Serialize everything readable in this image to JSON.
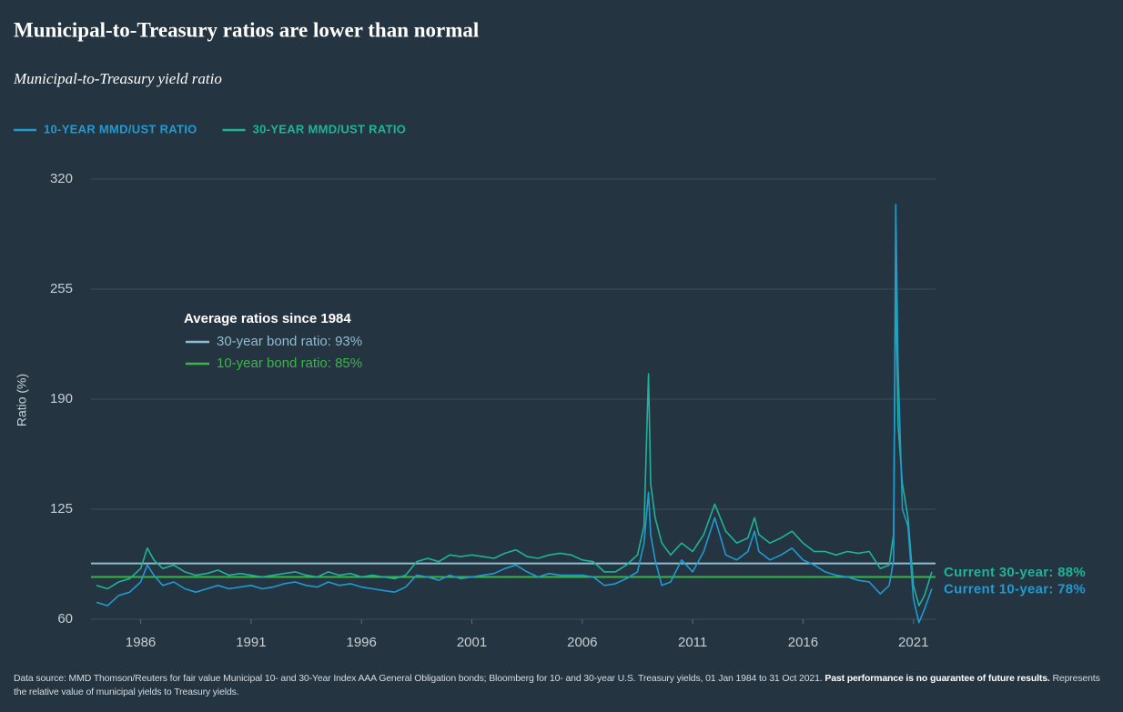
{
  "chart_data": {
    "type": "line",
    "title": "Municipal-to-Treasury ratios are lower than normal",
    "subtitle": "Municipal-to-Treasury yield ratio",
    "y_label": "Ratio (%)",
    "xlim": [
      1983.75,
      2022
    ],
    "xticks": [
      1986,
      1991,
      1996,
      2001,
      2006,
      2011,
      2016,
      2021
    ],
    "ylim": [
      60,
      320
    ],
    "yticks": [
      60,
      125,
      190,
      255,
      320
    ],
    "grid": true,
    "x": [
      1984,
      1984.5,
      1985,
      1985.5,
      1986,
      1986.3,
      1986.6,
      1987,
      1987.5,
      1988,
      1988.5,
      1989,
      1989.5,
      1990,
      1990.5,
      1991,
      1991.5,
      1992,
      1992.5,
      1993,
      1993.5,
      1994,
      1994.5,
      1995,
      1995.5,
      1996,
      1996.5,
      1997,
      1997.5,
      1998,
      1998.5,
      1999,
      1999.5,
      2000,
      2000.5,
      2001,
      2001.5,
      2002,
      2002.5,
      2003,
      2003.5,
      2004,
      2004.5,
      2005,
      2005.5,
      2006,
      2006.5,
      2007,
      2007.5,
      2008,
      2008.5,
      2008.8,
      2009,
      2009.1,
      2009.3,
      2009.6,
      2010,
      2010.5,
      2011,
      2011.5,
      2012,
      2012.5,
      2013,
      2013.5,
      2013.8,
      2014,
      2014.5,
      2015,
      2015.5,
      2016,
      2016.5,
      2017,
      2017.5,
      2018,
      2018.5,
      2019,
      2019.5,
      2019.9,
      2020.1,
      2020.2,
      2020.3,
      2020.5,
      2020.75,
      2021,
      2021.25,
      2021.5,
      2021.83
    ],
    "series": [
      {
        "name": "10-YEAR MMD/UST RATIO",
        "color": "#1f9bd1",
        "values": [
          70,
          68,
          74,
          76,
          82,
          92,
          86,
          80,
          82,
          78,
          76,
          78,
          80,
          78,
          79,
          80,
          78,
          79,
          81,
          82,
          80,
          79,
          82,
          80,
          81,
          79,
          78,
          77,
          76,
          79,
          86,
          85,
          83,
          86,
          84,
          85,
          86,
          87,
          90,
          92,
          88,
          85,
          87,
          86,
          86,
          86,
          85,
          80,
          81,
          84,
          88,
          105,
          135,
          110,
          95,
          80,
          82,
          95,
          88,
          100,
          120,
          98,
          95,
          100,
          112,
          100,
          95,
          98,
          102,
          95,
          92,
          88,
          86,
          85,
          83,
          82,
          75,
          80,
          95,
          305,
          210,
          125,
          115,
          72,
          58,
          66,
          78
        ]
      },
      {
        "name": "30-YEAR MMD/UST RATIO",
        "color": "#1fb39a",
        "values": [
          80,
          78,
          82,
          84,
          90,
          102,
          95,
          90,
          92,
          88,
          86,
          87,
          89,
          86,
          87,
          86,
          85,
          86,
          87,
          88,
          86,
          85,
          88,
          86,
          87,
          85,
          86,
          85,
          84,
          86,
          94,
          96,
          94,
          98,
          97,
          98,
          97,
          96,
          99,
          101,
          97,
          96,
          98,
          99,
          98,
          95,
          94,
          88,
          88,
          92,
          98,
          115,
          205,
          140,
          120,
          105,
          98,
          105,
          100,
          110,
          128,
          112,
          105,
          108,
          120,
          110,
          105,
          108,
          112,
          105,
          100,
          100,
          98,
          100,
          99,
          100,
          90,
          92,
          110,
          265,
          175,
          140,
          120,
          80,
          68,
          74,
          88
        ]
      }
    ],
    "reference_title": "Average ratios since 1984",
    "reference_lines": [
      {
        "label": "30-year bond ratio: 93%",
        "value": 93,
        "color": "#8fbcd0"
      },
      {
        "label": "10-year bond ratio: 85%",
        "value": 85,
        "color": "#3cb44a"
      }
    ],
    "annotations": [
      {
        "label": "Current 30-year: 88%",
        "value": 88,
        "color": "#1fb39a"
      },
      {
        "label": "Current 10-year: 78%",
        "value": 78,
        "color": "#1f9bd1"
      }
    ]
  },
  "footer": {
    "text": "Data source: MMD Thomson/Reuters for fair value Municipal 10- and 30-Year Index AAA General Obligation bonds; Bloomberg for 10- and 30-year U.S. Treasury yields, 01 Jan 1984 to 31 Oct 2021.",
    "bold": "Past performance is no guarantee of future results.",
    "note": "Represents the relative value of municipal yields to Treasury yields."
  }
}
